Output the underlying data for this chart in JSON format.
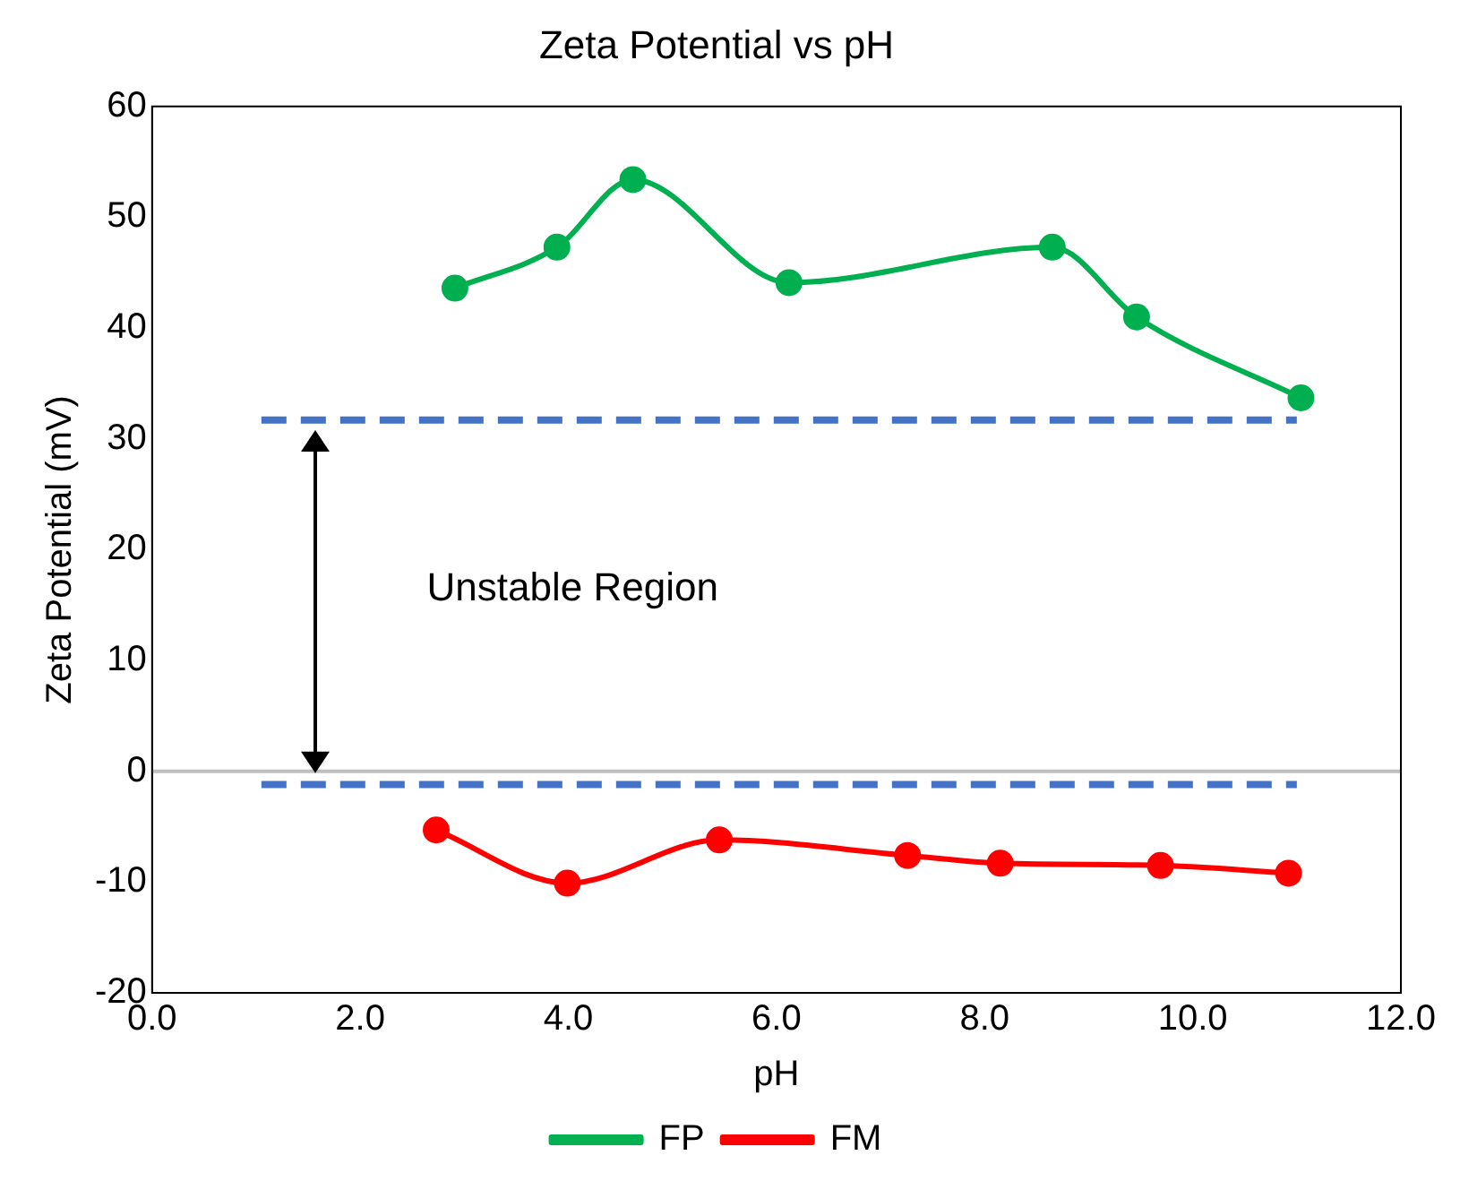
{
  "chart_data": {
    "type": "line",
    "title": "Zeta Potential vs pH",
    "xlabel": "pH",
    "ylabel": "Zeta Potential (mV)",
    "xlim": [
      0,
      12
    ],
    "xticks": [
      {
        "value": 0,
        "label": "0.0"
      },
      {
        "value": 2,
        "label": "2.0"
      },
      {
        "value": 4,
        "label": "4.0"
      },
      {
        "value": 6,
        "label": "6.0"
      },
      {
        "value": 8,
        "label": "8.0"
      },
      {
        "value": 10,
        "label": "10.0"
      },
      {
        "value": 12,
        "label": "12.0"
      }
    ],
    "ylim": [
      -20,
      60
    ],
    "yticks": [
      -20,
      -10,
      0,
      10,
      20,
      30,
      40,
      50,
      60
    ],
    "grid": false,
    "legend": "bottom",
    "marker": "circle",
    "series": [
      {
        "name": "FP",
        "color": "#00b050",
        "x": [
          2.91,
          3.89,
          4.62,
          6.12,
          8.65,
          9.46,
          11.04
        ],
        "values": [
          43.6,
          47.3,
          53.4,
          44.1,
          47.3,
          41.0,
          33.7
        ]
      },
      {
        "name": "FM",
        "color": "#ff0000",
        "x": [
          2.73,
          3.99,
          5.45,
          7.26,
          8.15,
          9.69,
          10.92
        ],
        "values": [
          -5.3,
          -10.1,
          -6.2,
          -7.6,
          -8.3,
          -8.5,
          -9.2
        ]
      },
      {
        "color": "#4472c4",
        "x": [
          1.05,
          11.0
        ],
        "values": [
          31.7,
          31.7
        ],
        "line_style": "dashed",
        "marker": "none"
      },
      {
        "color": "#4472c4",
        "x": [
          1.05,
          11.0
        ],
        "values": [
          -1.2,
          -1.2
        ],
        "line_style": "dashed",
        "marker": "none"
      }
    ],
    "ref_lines": [
      {
        "axis": "y",
        "value": 0,
        "color": "#bfbfbf"
      }
    ],
    "annotations": [
      "Unstable Region"
    ]
  }
}
